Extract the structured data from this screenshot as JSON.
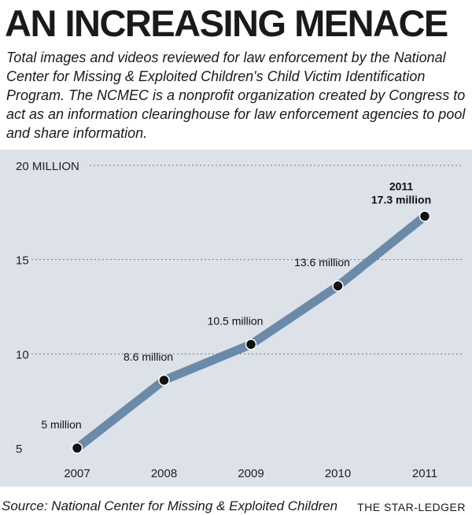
{
  "title": "AN INCREASING MENACE",
  "subtitle": "Total images and videos reviewed for law enforcement by the National Center for Missing & Exploited Children's Child Victim Identification Program. The NCMEC is a nonprofit organization created by Congress to act as an information clearinghouse for law enforcement agencies to pool and share information.",
  "source": "Source: National Center for Missing & Exploited Children",
  "credit": "THE STAR-LEDGER",
  "colors": {
    "panel": "#dde1e8",
    "line": "#6a8aaa",
    "point": "#111111",
    "grid": "#7a7a7a"
  },
  "chart_data": {
    "type": "line",
    "categories": [
      "2007",
      "2008",
      "2009",
      "2010",
      "2011"
    ],
    "values": [
      5,
      8.6,
      10.5,
      13.6,
      17.3
    ],
    "point_labels": [
      "5 million",
      "8.6 million",
      "10.5 million",
      "13.6 million",
      "17.3 million"
    ],
    "highlight": {
      "index": 4,
      "year_label": "2011",
      "value_label": "17.3 million"
    },
    "y_ticks": [
      {
        "value": 5,
        "label": "5"
      },
      {
        "value": 10,
        "label": "10"
      },
      {
        "value": 15,
        "label": "15"
      },
      {
        "value": 20,
        "label": "20 MILLION"
      }
    ],
    "ylim": [
      5,
      20
    ],
    "grid": "dotted horizontal"
  }
}
